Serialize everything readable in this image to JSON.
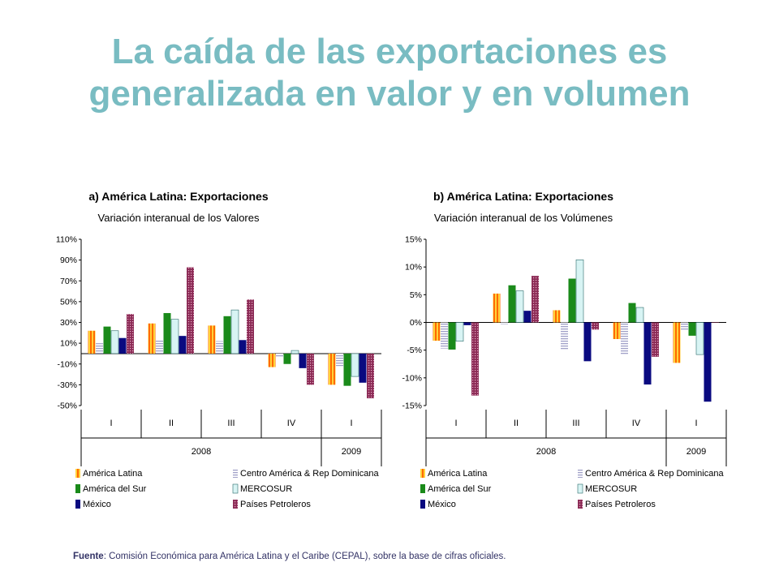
{
  "title_line1": "La caída de las exportaciones es",
  "title_line2": "generalizada en valor y en volumen",
  "source_label": "Fuente",
  "source_text": ": Comisión Económica para América Latina y el Caribe (CEPAL), sobre la base de cifras oficiales.",
  "colors": {
    "title": "#79bcc2",
    "series": [
      "#ff6a00",
      "#a0a0c8",
      "#1a8a1a",
      "#d8f4f4",
      "#0a0a80",
      "#8b2a55"
    ]
  },
  "chart_data": [
    {
      "type": "bar",
      "title": "a) América Latina: Exportaciones",
      "subtitle": "Variación interanual de los Valores",
      "categories": [
        "I",
        "II",
        "III",
        "IV",
        "I"
      ],
      "years": [
        {
          "label": "2008",
          "span": 4
        },
        {
          "label": "2009",
          "span": 1
        }
      ],
      "ylim": [
        -50,
        110
      ],
      "yticks": [
        -50,
        -30,
        -10,
        10,
        30,
        50,
        70,
        90,
        110
      ],
      "ytick_labels": [
        "-50%",
        "-30%",
        "-10%",
        "10%",
        "30%",
        "50%",
        "70%",
        "90%",
        "110%"
      ],
      "series": [
        {
          "name": "América Latina",
          "values": [
            22,
            29,
            27,
            -13,
            -30
          ]
        },
        {
          "name": "Centro América & Rep Dominicana",
          "values": [
            10,
            13,
            12,
            -3,
            -12
          ]
        },
        {
          "name": "América del Sur",
          "values": [
            26,
            39,
            36,
            -10,
            -31
          ]
        },
        {
          "name": "MERCOSUR",
          "values": [
            22,
            33,
            42,
            3,
            -22
          ]
        },
        {
          "name": "México",
          "values": [
            15,
            17,
            13,
            -14,
            -28
          ]
        },
        {
          "name": "Países Petroleros",
          "values": [
            38,
            83,
            52,
            -30,
            -43
          ]
        }
      ]
    },
    {
      "type": "bar",
      "title": "b) América Latina: Exportaciones",
      "subtitle": "Variación interanual de los Volúmenes",
      "categories": [
        "I",
        "II",
        "III",
        "IV",
        "I"
      ],
      "years": [
        {
          "label": "2008",
          "span": 4
        },
        {
          "label": "2009",
          "span": 1
        }
      ],
      "ylim": [
        -15,
        15
      ],
      "yticks": [
        -15,
        -10,
        -5,
        0,
        5,
        10,
        15
      ],
      "ytick_labels": [
        "-15%",
        "-10%",
        "-5%",
        "0%",
        "5%",
        "10%",
        "15%"
      ],
      "series": [
        {
          "name": "América Latina",
          "values": [
            -3.3,
            5.2,
            2.2,
            -3.0,
            -7.3
          ]
        },
        {
          "name": "Centro América & Rep Dominicana",
          "values": [
            -4.7,
            -0.3,
            -5.0,
            -5.8,
            -1.5
          ]
        },
        {
          "name": "América del Sur",
          "values": [
            -4.9,
            6.7,
            7.9,
            3.5,
            -2.4
          ]
        },
        {
          "name": "MERCOSUR",
          "values": [
            -3.4,
            5.7,
            11.3,
            2.7,
            -5.8
          ]
        },
        {
          "name": "México",
          "values": [
            -0.5,
            2.1,
            -7.0,
            -11.2,
            -14.3
          ]
        },
        {
          "name": "Países Petroleros",
          "values": [
            -13.2,
            8.4,
            -1.3,
            -6.2,
            0
          ]
        }
      ]
    }
  ]
}
